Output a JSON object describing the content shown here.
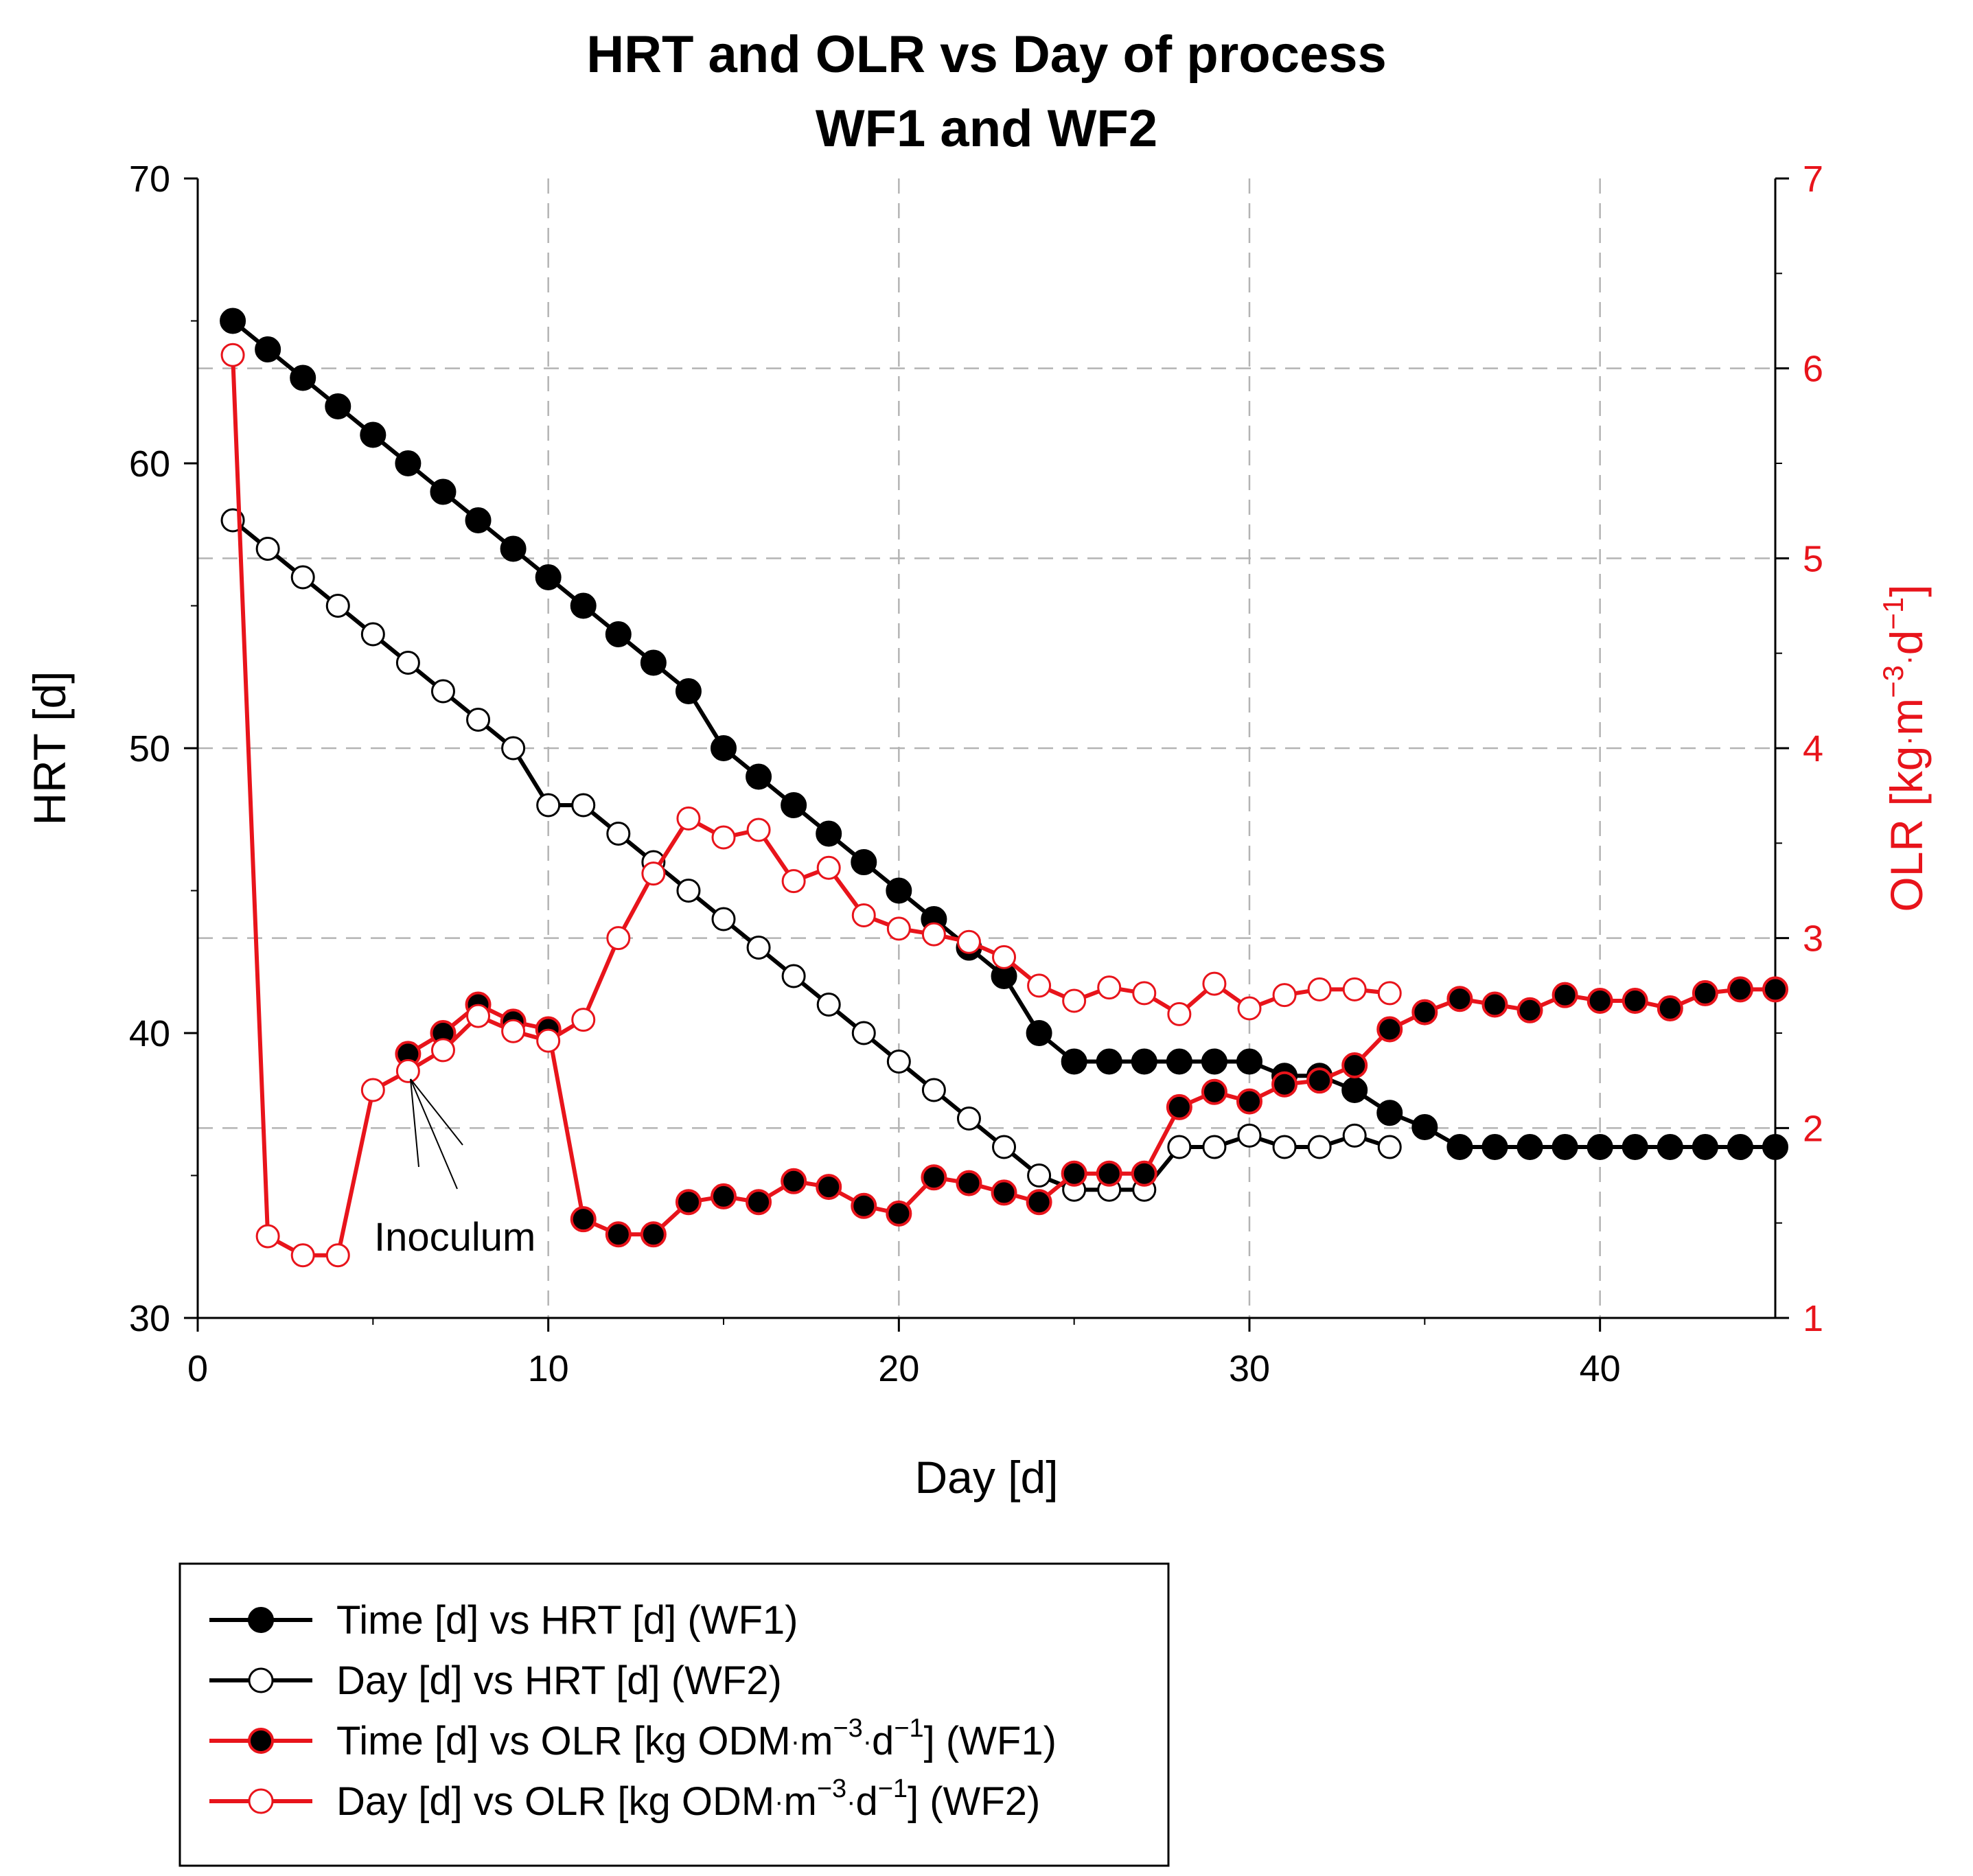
{
  "chart_data": {
    "type": "line",
    "title": "HRT and OLR vs Day of process",
    "subtitle": "WF1 and WF2",
    "xlabel": "Day [d]",
    "ylabel_left": "HRT [d]",
    "ylabel_right_parts": {
      "base": "OLR [kg",
      "dot1": "·",
      "m": "m",
      "sup1": "−3",
      "dot2": "·",
      "d": "d",
      "sup2": "−1",
      "close": "]"
    },
    "xlim": [
      0,
      45
    ],
    "ylim_left": [
      30,
      70
    ],
    "ylim_right": [
      1,
      7
    ],
    "xticks": [
      "0",
      "10",
      "20",
      "30",
      "40"
    ],
    "yticks_left": [
      "30",
      "40",
      "50",
      "60",
      "70"
    ],
    "yticks_right": [
      "1",
      "2",
      "3",
      "4",
      "5",
      "6",
      "7"
    ],
    "grid": true,
    "legend_position": "below",
    "annotation": "Inoculum",
    "colors": {
      "black": "#000000",
      "red": "#e8141b",
      "grid": "#b4b4b4"
    },
    "legend": [
      {
        "parts": [
          "Time [d] vs HRT [d] (WF1)"
        ]
      },
      {
        "parts": [
          "Day [d] vs HRT [d] (WF2)"
        ]
      },
      {
        "parts": [
          "Time [d] vs OLR [kg ODM",
          "·",
          "m",
          "−3",
          "·",
          "d",
          "−1",
          "] (WF1)"
        ]
      },
      {
        "parts": [
          "Day [d] vs OLR [kg ODM",
          "·",
          "m",
          "−3",
          "·",
          "d",
          "−1",
          "] (WF2)"
        ]
      }
    ],
    "series": [
      {
        "axis": "left",
        "color": "#000000",
        "marker": "filled",
        "points": [
          [
            1,
            65
          ],
          [
            2,
            64
          ],
          [
            3,
            63
          ],
          [
            4,
            62
          ],
          [
            5,
            61
          ],
          [
            6,
            60
          ],
          [
            7,
            59
          ],
          [
            8,
            58
          ],
          [
            9,
            57
          ],
          [
            10,
            56
          ],
          [
            11,
            55
          ],
          [
            12,
            54
          ],
          [
            13,
            53
          ],
          [
            14,
            52
          ],
          [
            15,
            50
          ],
          [
            16,
            49
          ],
          [
            17,
            48
          ],
          [
            18,
            47
          ],
          [
            19,
            46
          ],
          [
            20,
            45
          ],
          [
            21,
            44
          ],
          [
            22,
            43
          ],
          [
            23,
            42
          ],
          [
            24,
            40
          ],
          [
            25,
            39
          ],
          [
            26,
            39
          ],
          [
            27,
            39
          ],
          [
            28,
            39
          ],
          [
            29,
            39
          ],
          [
            30,
            39
          ],
          [
            31,
            38.5
          ],
          [
            32,
            38.5
          ],
          [
            33,
            38
          ],
          [
            34,
            37.2
          ],
          [
            35,
            36.7
          ],
          [
            36,
            36
          ],
          [
            37,
            36
          ],
          [
            38,
            36
          ],
          [
            39,
            36
          ],
          [
            40,
            36
          ],
          [
            41,
            36
          ],
          [
            42,
            36
          ],
          [
            43,
            36
          ],
          [
            44,
            36
          ],
          [
            45,
            36
          ]
        ]
      },
      {
        "axis": "left",
        "color": "#000000",
        "marker": "open",
        "points": [
          [
            1,
            58
          ],
          [
            2,
            57
          ],
          [
            3,
            56
          ],
          [
            4,
            55
          ],
          [
            5,
            54
          ],
          [
            6,
            53
          ],
          [
            7,
            52
          ],
          [
            8,
            51
          ],
          [
            9,
            50
          ],
          [
            10,
            48
          ],
          [
            11,
            48
          ],
          [
            12,
            47
          ],
          [
            13,
            46
          ],
          [
            14,
            45
          ],
          [
            15,
            44
          ],
          [
            16,
            43
          ],
          [
            17,
            42
          ],
          [
            18,
            41
          ],
          [
            19,
            40
          ],
          [
            20,
            39
          ],
          [
            21,
            38
          ],
          [
            22,
            37
          ],
          [
            23,
            36
          ],
          [
            24,
            35
          ],
          [
            25,
            34.5
          ],
          [
            26,
            34.5
          ],
          [
            27,
            34.5
          ],
          [
            28,
            36
          ],
          [
            29,
            36
          ],
          [
            30,
            36.4
          ],
          [
            31,
            36
          ],
          [
            32,
            36
          ],
          [
            33,
            36.4
          ],
          [
            34,
            36
          ]
        ]
      },
      {
        "axis": "right",
        "color": "#e8141b",
        "marker": "filled",
        "points": [
          [
            6,
            2.39
          ],
          [
            7,
            2.5
          ],
          [
            8,
            2.65
          ],
          [
            9,
            2.56
          ],
          [
            10,
            2.52
          ],
          [
            11,
            1.52
          ],
          [
            12,
            1.44
          ],
          [
            13,
            1.44
          ],
          [
            14,
            1.61
          ],
          [
            15,
            1.64
          ],
          [
            16,
            1.61
          ],
          [
            17,
            1.72
          ],
          [
            18,
            1.69
          ],
          [
            19,
            1.59
          ],
          [
            20,
            1.55
          ],
          [
            21,
            1.74
          ],
          [
            22,
            1.71
          ],
          [
            23,
            1.66
          ],
          [
            24,
            1.61
          ],
          [
            25,
            1.76
          ],
          [
            26,
            1.76
          ],
          [
            27,
            1.76
          ],
          [
            28,
            2.11
          ],
          [
            29,
            2.19
          ],
          [
            30,
            2.14
          ],
          [
            31,
            2.23
          ],
          [
            32,
            2.25
          ],
          [
            33,
            2.33
          ],
          [
            34,
            2.52
          ],
          [
            35,
            2.61
          ],
          [
            36,
            2.68
          ],
          [
            37,
            2.65
          ],
          [
            38,
            2.62
          ],
          [
            39,
            2.7
          ],
          [
            40,
            2.67
          ],
          [
            41,
            2.67
          ],
          [
            42,
            2.63
          ],
          [
            43,
            2.71
          ],
          [
            44,
            2.73
          ],
          [
            45,
            2.73
          ]
        ]
      },
      {
        "axis": "right",
        "color": "#e8141b",
        "marker": "open",
        "points": [
          [
            1,
            6.07
          ],
          [
            2,
            1.43
          ],
          [
            3,
            1.33
          ],
          [
            4,
            1.33
          ],
          [
            5,
            2.2
          ],
          [
            6,
            2.3
          ],
          [
            7,
            2.41
          ],
          [
            8,
            2.59
          ],
          [
            9,
            2.51
          ],
          [
            10,
            2.46
          ],
          [
            11,
            2.57
          ],
          [
            12,
            3
          ],
          [
            13,
            3.34
          ],
          [
            14,
            3.63
          ],
          [
            15,
            3.53
          ],
          [
            16,
            3.57
          ],
          [
            17,
            3.3
          ],
          [
            18,
            3.37
          ],
          [
            19,
            3.12
          ],
          [
            20,
            3.05
          ],
          [
            21,
            3.02
          ],
          [
            22,
            2.98
          ],
          [
            23,
            2.9
          ],
          [
            24,
            2.75
          ],
          [
            25,
            2.67
          ],
          [
            26,
            2.74
          ],
          [
            27,
            2.71
          ],
          [
            28,
            2.6
          ],
          [
            29,
            2.76
          ],
          [
            30,
            2.63
          ],
          [
            31,
            2.7
          ],
          [
            32,
            2.73
          ],
          [
            33,
            2.73
          ],
          [
            34,
            2.71
          ]
        ]
      }
    ]
  }
}
